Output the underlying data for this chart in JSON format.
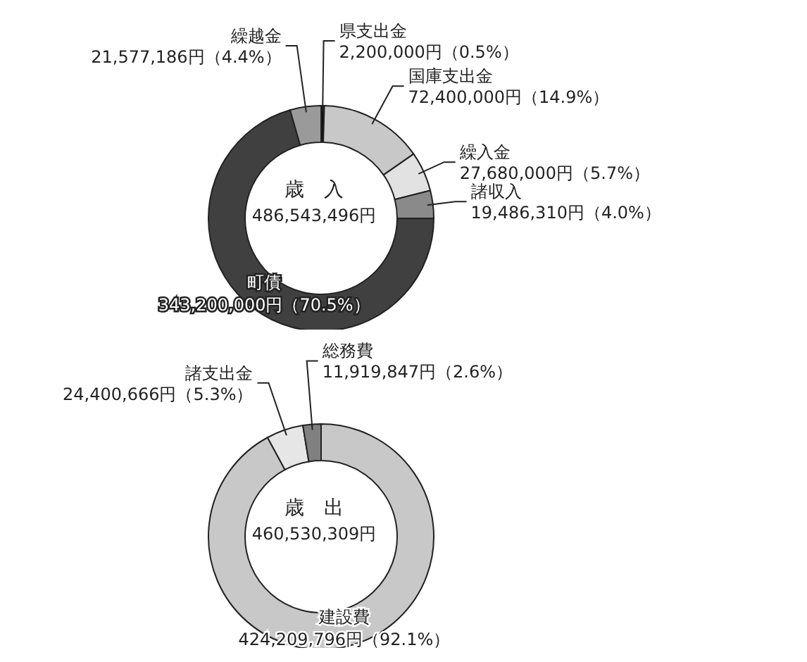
{
  "chart_data": [
    {
      "type": "donut",
      "title": "歳　入",
      "subtitle": "486,543,496円",
      "categories": [
        "県支出金",
        "国庫支出金",
        "繰入金",
        "諸収入",
        "町債",
        "繰越金"
      ],
      "values": [
        2200000,
        72400000,
        27680000,
        19486310,
        343200000,
        21577186
      ],
      "colors": [
        "#111111",
        "#c8c8c8",
        "#e2e2e2",
        "#8a8a8a",
        "#404040",
        "#9a9a9a"
      ],
      "value_labels": [
        "2,200,000円（0.5%）",
        "72,400,000円（14.9%）",
        "27,680,000円（5.7%）",
        "19,486,310円（4.0%）",
        "343,200,000円（70.5%）",
        "21,577,186円（4.4%）"
      ]
    },
    {
      "type": "donut",
      "title": "歳　出",
      "subtitle": "460,530,309円",
      "categories": [
        "建設費",
        "諸支出金",
        "総務費"
      ],
      "values": [
        424209796,
        24400666,
        11919847
      ],
      "colors": [
        "#c8c8c9",
        "#e6e6e6",
        "#808080"
      ],
      "value_labels": [
        "424,209,796円（92.1%）",
        "24,400,666円（5.3%）",
        "11,919,847円（2.6%）"
      ]
    }
  ]
}
